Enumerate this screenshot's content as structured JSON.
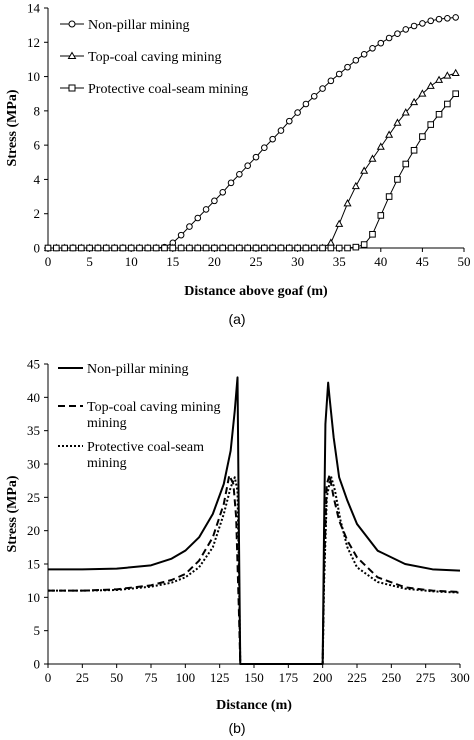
{
  "chart_data": [
    {
      "id": "a",
      "type": "line",
      "caption": "(a)",
      "xlabel": "Distance above goaf (m)",
      "ylabel": "Stress (MPa)",
      "xlim": [
        0,
        50
      ],
      "ylim": [
        0,
        14
      ],
      "xticks": [
        0,
        5,
        10,
        15,
        20,
        25,
        30,
        35,
        40,
        45,
        50
      ],
      "yticks": [
        0,
        2,
        4,
        6,
        8,
        10,
        12,
        14
      ],
      "grid": false,
      "legend_position": "top-left",
      "series": [
        {
          "name": "Non-pillar mining",
          "marker": "circle",
          "x": [
            0,
            1,
            2,
            3,
            4,
            5,
            6,
            7,
            8,
            9,
            10,
            11,
            12,
            13,
            14,
            15,
            16,
            17,
            18,
            19,
            20,
            21,
            22,
            23,
            24,
            25,
            26,
            27,
            28,
            29,
            30,
            31,
            32,
            33,
            34,
            35,
            36,
            37,
            38,
            39,
            40,
            41,
            42,
            43,
            44,
            45,
            46,
            47,
            48,
            49
          ],
          "y": [
            0,
            0,
            0,
            0,
            0,
            0,
            0,
            0,
            0,
            0,
            0,
            0,
            0,
            0,
            0.05,
            0.3,
            0.75,
            1.25,
            1.75,
            2.25,
            2.75,
            3.25,
            3.8,
            4.3,
            4.8,
            5.3,
            5.85,
            6.35,
            6.85,
            7.4,
            7.9,
            8.4,
            8.85,
            9.3,
            9.75,
            10.15,
            10.55,
            10.95,
            11.3,
            11.65,
            11.95,
            12.25,
            12.5,
            12.75,
            12.95,
            13.1,
            13.25,
            13.35,
            13.4,
            13.45
          ]
        },
        {
          "name": "Top-coal caving mining",
          "marker": "triangle",
          "x": [
            0,
            1,
            2,
            3,
            4,
            5,
            6,
            7,
            8,
            9,
            10,
            11,
            12,
            13,
            14,
            15,
            16,
            17,
            18,
            19,
            20,
            21,
            22,
            23,
            24,
            25,
            26,
            27,
            28,
            29,
            30,
            31,
            32,
            33,
            34,
            35,
            36,
            37,
            38,
            39,
            40,
            41,
            42,
            43,
            44,
            45,
            46,
            47,
            48,
            49
          ],
          "y": [
            0,
            0,
            0,
            0,
            0,
            0,
            0,
            0,
            0,
            0,
            0,
            0,
            0,
            0,
            0,
            0,
            0,
            0,
            0,
            0,
            0,
            0,
            0,
            0,
            0,
            0,
            0,
            0,
            0,
            0,
            0,
            0,
            0,
            0,
            0.3,
            1.4,
            2.6,
            3.6,
            4.5,
            5.2,
            5.9,
            6.6,
            7.3,
            7.9,
            8.5,
            9.0,
            9.45,
            9.8,
            10.05,
            10.2
          ]
        },
        {
          "name": "Protective coal-seam mining",
          "marker": "square",
          "x": [
            0,
            1,
            2,
            3,
            4,
            5,
            6,
            7,
            8,
            9,
            10,
            11,
            12,
            13,
            14,
            15,
            16,
            17,
            18,
            19,
            20,
            21,
            22,
            23,
            24,
            25,
            26,
            27,
            28,
            29,
            30,
            31,
            32,
            33,
            34,
            35,
            36,
            37,
            38,
            39,
            40,
            41,
            42,
            43,
            44,
            45,
            46,
            47,
            48,
            49
          ],
          "y": [
            0,
            0,
            0,
            0,
            0,
            0,
            0,
            0,
            0,
            0,
            0,
            0,
            0,
            0,
            0,
            0,
            0,
            0,
            0,
            0,
            0,
            0,
            0,
            0,
            0,
            0,
            0,
            0,
            0,
            0,
            0,
            0,
            0,
            0,
            0,
            0,
            0,
            0.05,
            0.2,
            0.8,
            1.9,
            3.0,
            4.0,
            4.9,
            5.7,
            6.5,
            7.2,
            7.8,
            8.4,
            9.0
          ]
        }
      ]
    },
    {
      "id": "b",
      "type": "line",
      "caption": "(b)",
      "xlabel": "Distance (m)",
      "ylabel": "Stress (MPa)",
      "xlim": [
        0,
        300
      ],
      "ylim": [
        0,
        45
      ],
      "xticks": [
        0,
        25,
        50,
        75,
        100,
        125,
        150,
        175,
        200,
        225,
        250,
        275,
        300
      ],
      "yticks": [
        0,
        5,
        10,
        15,
        20,
        25,
        30,
        35,
        40,
        45
      ],
      "grid": false,
      "legend_position": "top-left",
      "series": [
        {
          "name": "Non-pillar mining",
          "dash": "solid",
          "x": [
            0,
            25,
            50,
            75,
            90,
            100,
            110,
            120,
            128,
            133,
            136,
            138,
            139,
            140,
            150,
            175,
            200,
            201,
            202,
            204,
            205,
            208,
            212,
            218,
            225,
            240,
            260,
            280,
            300
          ],
          "y": [
            14.2,
            14.2,
            14.3,
            14.8,
            15.8,
            17.0,
            19.0,
            22.5,
            27.0,
            32.0,
            38.0,
            43.0,
            20.0,
            0,
            0,
            0,
            0,
            20.0,
            36.0,
            42.2,
            40.0,
            34.0,
            28.0,
            24.5,
            21.0,
            17.0,
            15.0,
            14.2,
            14.0
          ]
        },
        {
          "name": "Top-coal caving mining\nmining",
          "dash": "dashed",
          "x": [
            0,
            25,
            50,
            75,
            90,
            100,
            110,
            120,
            128,
            132,
            135,
            137,
            139,
            140,
            150,
            175,
            200,
            201,
            203,
            205,
            208,
            212,
            218,
            225,
            240,
            260,
            280,
            300
          ],
          "y": [
            11.0,
            11.0,
            11.2,
            11.8,
            12.6,
            13.5,
            15.5,
            19.0,
            24.0,
            28.3,
            27.0,
            22.0,
            8.0,
            0,
            0,
            0,
            0,
            14.0,
            27.0,
            28.3,
            25.0,
            21.5,
            18.5,
            16.0,
            13.0,
            11.5,
            11.0,
            10.8
          ]
        },
        {
          "name": "Protective coal-seam\nmining",
          "dash": "dotted",
          "x": [
            0,
            25,
            50,
            75,
            90,
            100,
            110,
            120,
            128,
            133,
            136,
            138,
            139,
            140,
            150,
            175,
            200,
            201,
            203,
            206,
            209,
            213,
            218,
            225,
            240,
            260,
            280,
            300
          ],
          "y": [
            11.0,
            11.0,
            11.1,
            11.6,
            12.2,
            13.0,
            14.5,
            17.5,
            22.5,
            26.5,
            28.0,
            26.0,
            14.0,
            0,
            0,
            0,
            0,
            12.0,
            25.0,
            28.2,
            26.0,
            21.5,
            17.5,
            14.5,
            12.3,
            11.3,
            10.9,
            10.7
          ]
        }
      ]
    }
  ]
}
